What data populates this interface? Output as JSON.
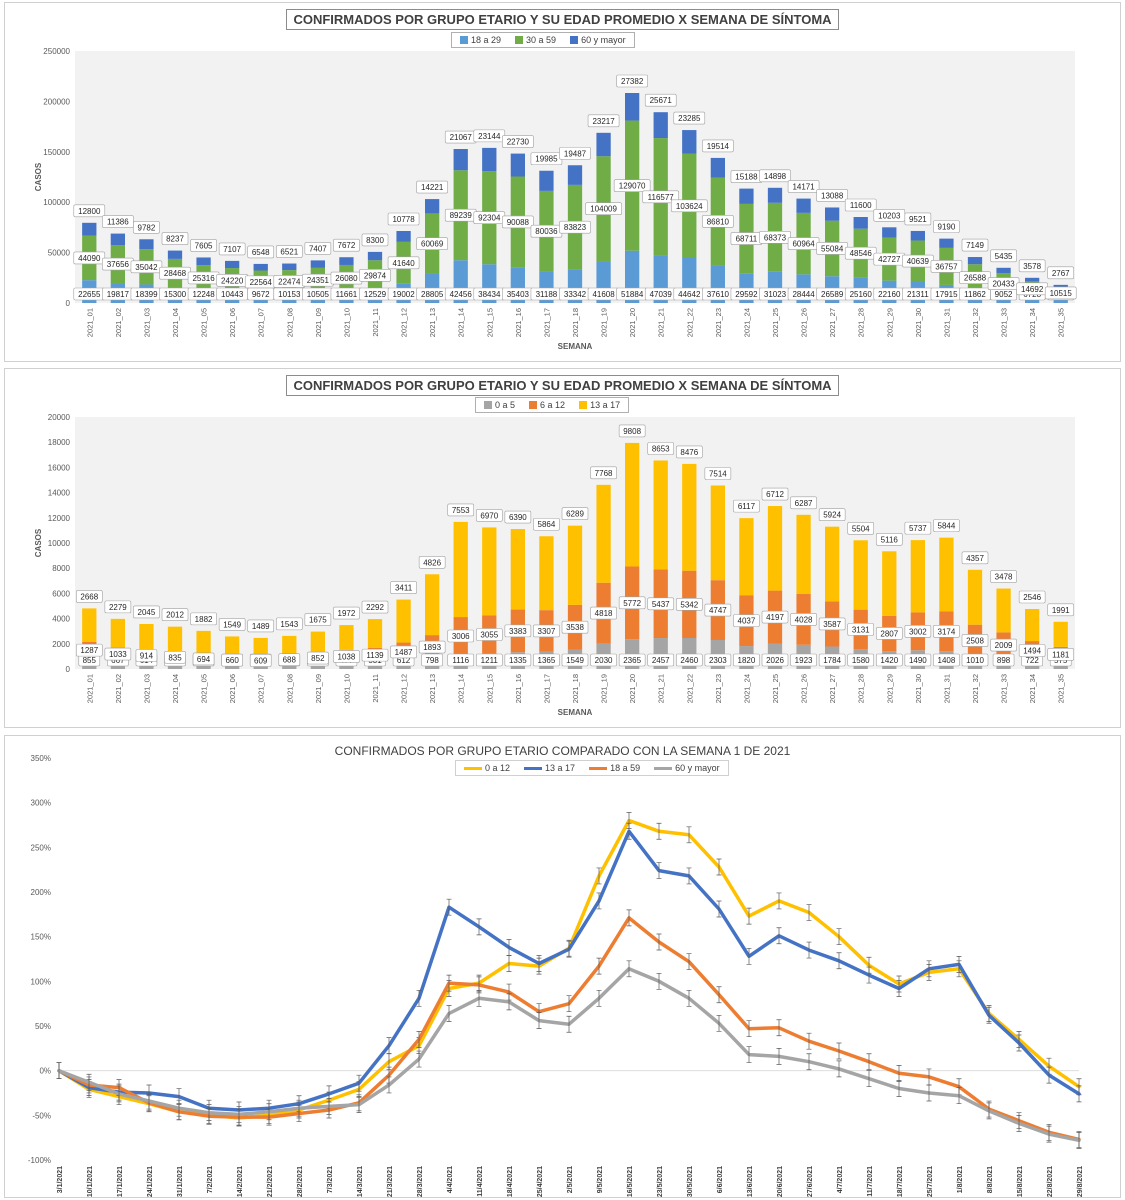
{
  "charts": [
    {
      "title": "CONFIRMADOS POR GRUPO ETARIO Y SU EDAD PROMEDIO X SEMANA DE SÍNTOMA",
      "ylabel": "CASOS",
      "xlabel": "SEMANA",
      "legend": [
        "18 a 29",
        "30 a 59",
        "60 y mayor"
      ]
    },
    {
      "title": "CONFIRMADOS POR GRUPO ETARIO Y SU EDAD PROMEDIO X SEMANA DE SÍNTOMA",
      "ylabel": "CASOS",
      "xlabel": "SEMANA",
      "legend": [
        "0 a 5",
        "6 a 12",
        "13 a 17"
      ]
    },
    {
      "title": "CONFIRMADOS POR GRUPO ETARIO COMPARADO CON LA SEMANA 1 DE 2021",
      "legend": [
        "0 a 12",
        "13 a 17",
        "18 a 59",
        "60 y mayor"
      ]
    }
  ],
  "chart_data": [
    {
      "type": "bar",
      "stacked": true,
      "title": "CONFIRMADOS POR GRUPO ETARIO Y SU EDAD PROMEDIO X SEMANA DE SÍNTOMA",
      "xlabel": "SEMANA",
      "ylabel": "CASOS",
      "ylim": [
        0,
        250000
      ],
      "yticks": [
        0,
        50000,
        100000,
        150000,
        200000,
        250000
      ],
      "grid": false,
      "legend_position": "top",
      "categories": [
        "2021_01",
        "2021_02",
        "2021_03",
        "2021_04",
        "2021_05",
        "2021_06",
        "2021_07",
        "2021_08",
        "2021_09",
        "2021_10",
        "2021_11",
        "2021_12",
        "2021_13",
        "2021_14",
        "2021_15",
        "2021_16",
        "2021_17",
        "2021_18",
        "2021_19",
        "2021_20",
        "2021_21",
        "2021_22",
        "2021_23",
        "2021_24",
        "2021_25",
        "2021_26",
        "2021_27",
        "2021_28",
        "2021_29",
        "2021_30",
        "2021_31",
        "2021_32",
        "2021_33",
        "2021_34",
        "2021_35"
      ],
      "series": [
        {
          "name": "18 a 29",
          "color": "#5b9bd5",
          "values": [
            22655,
            19817,
            18399,
            15300,
            12248,
            10443,
            9672,
            10153,
            10505,
            11661,
            12529,
            19002,
            28805,
            42456,
            38434,
            35403,
            31188,
            33342,
            41608,
            51884,
            47039,
            44642,
            37610,
            29592,
            31023,
            28444,
            26589,
            25160,
            22160,
            21311,
            17915,
            11862,
            9052,
            6728,
            4718
          ]
        },
        {
          "name": "30 a 59",
          "color": "#70ad47",
          "values": [
            44090,
            37656,
            35042,
            28468,
            25316,
            24220,
            22564,
            22474,
            24351,
            26080,
            29874,
            41640,
            60069,
            89239,
            92304,
            90088,
            80036,
            83823,
            104009,
            129070,
            116577,
            103624,
            86810,
            68711,
            68373,
            60964,
            55084,
            48546,
            42727,
            40639,
            36757,
            26588,
            20433,
            14692,
            10515
          ]
        },
        {
          "name": "60 y mayor",
          "color": "#4472c4",
          "values": [
            12800,
            11386,
            9782,
            8237,
            7605,
            7107,
            6548,
            6521,
            7407,
            7672,
            8300,
            10778,
            14221,
            21067,
            23144,
            22730,
            19985,
            19487,
            23217,
            27382,
            25671,
            23285,
            19514,
            15188,
            14898,
            14171,
            13088,
            11600,
            10203,
            9521,
            9190,
            7149,
            5435,
            3578,
            2767
          ]
        }
      ]
    },
    {
      "type": "bar",
      "stacked": true,
      "title": "CONFIRMADOS POR GRUPO ETARIO Y SU EDAD PROMEDIO X SEMANA DE SÍNTOMA",
      "xlabel": "SEMANA",
      "ylabel": "CASOS",
      "ylim": [
        0,
        20000
      ],
      "yticks": [
        0,
        2000,
        4000,
        6000,
        8000,
        10000,
        12000,
        14000,
        16000,
        18000,
        20000
      ],
      "grid": false,
      "legend_position": "top",
      "categories": [
        "2021_01",
        "2021_02",
        "2021_03",
        "2021_04",
        "2021_05",
        "2021_06",
        "2021_07",
        "2021_08",
        "2021_09",
        "2021_10",
        "2021_11",
        "2021_12",
        "2021_13",
        "2021_14",
        "2021_15",
        "2021_16",
        "2021_17",
        "2021_18",
        "2021_19",
        "2021_20",
        "2021_21",
        "2021_22",
        "2021_23",
        "2021_24",
        "2021_25",
        "2021_26",
        "2021_27",
        "2021_28",
        "2021_29",
        "2021_30",
        "2021_31",
        "2021_32",
        "2021_33",
        "2021_34",
        "2021_35"
      ],
      "series": [
        {
          "name": "0 a 5",
          "color": "#a5a5a5",
          "values": [
            855,
            667,
            614,
            513,
            450,
            375,
            370,
            397,
            443,
            477,
            531,
            612,
            798,
            1116,
            1211,
            1335,
            1365,
            1549,
            2030,
            2365,
            2457,
            2460,
            2303,
            1820,
            2026,
            1923,
            1784,
            1580,
            1420,
            1490,
            1408,
            1010,
            898,
            722,
            575
          ]
        },
        {
          "name": "6 a 12",
          "color": "#ed7d31",
          "values": [
            1287,
            1033,
            914,
            835,
            694,
            660,
            609,
            688,
            852,
            1038,
            1139,
            1487,
            1893,
            3006,
            3055,
            3383,
            3307,
            3538,
            4818,
            5772,
            5437,
            5342,
            4747,
            4037,
            4197,
            4028,
            3587,
            3131,
            2807,
            3002,
            3174,
            2508,
            2009,
            1494,
            1181
          ]
        },
        {
          "name": "13 a 17",
          "color": "#ffc000",
          "values": [
            2668,
            2279,
            2045,
            2012,
            1882,
            1549,
            1489,
            1543,
            1675,
            1972,
            2292,
            3411,
            4826,
            7553,
            6970,
            6390,
            5864,
            6289,
            7768,
            9808,
            8653,
            8476,
            7514,
            6117,
            6712,
            6287,
            5924,
            5504,
            5116,
            5737,
            5844,
            4357,
            3478,
            2546,
            1991
          ]
        }
      ]
    },
    {
      "type": "line",
      "title": "CONFIRMADOS POR GRUPO ETARIO COMPARADO CON LA SEMANA 1 DE 2021",
      "ylim": [
        -1.0,
        3.5
      ],
      "yticks": [
        "-100%",
        "-50%",
        "0%",
        "50%",
        "100%",
        "150%",
        "200%",
        "250%",
        "300%",
        "350%"
      ],
      "grid": false,
      "legend_position": "top",
      "categories": [
        "3/1/2021",
        "10/1/2021",
        "17/1/2021",
        "24/1/2021",
        "31/1/2021",
        "7/2/2021",
        "14/2/2021",
        "21/2/2021",
        "28/2/2021",
        "7/3/2021",
        "14/3/2021",
        "21/3/2021",
        "28/3/2021",
        "4/4/2021",
        "11/4/2021",
        "18/4/2021",
        "25/4/2021",
        "2/5/2021",
        "9/5/2021",
        "16/5/2021",
        "23/5/2021",
        "30/5/2021",
        "6/6/2021",
        "13/6/2021",
        "20/6/2021",
        "27/6/2021",
        "4/7/2021",
        "11/7/2021",
        "18/7/2021",
        "25/7/2021",
        "1/8/2021",
        "8/8/2021",
        "15/8/2021",
        "22/8/2021",
        "29/8/2021"
      ],
      "series": [
        {
          "name": "0 a 12",
          "color": "#ffc000",
          "values": [
            0,
            -0.21,
            -0.29,
            -0.37,
            -0.46,
            -0.5,
            -0.53,
            -0.5,
            -0.44,
            -0.33,
            -0.21,
            0.1,
            0.28,
            0.92,
            0.98,
            1.2,
            1.17,
            1.37,
            2.18,
            2.8,
            2.68,
            2.64,
            2.28,
            1.73,
            1.9,
            1.77,
            1.5,
            1.18,
            0.97,
            1.1,
            1.14,
            0.64,
            0.35,
            0.05,
            -0.18
          ]
        },
        {
          "name": "13 a 17",
          "color": "#4472c4",
          "values": [
            0,
            -0.19,
            -0.24,
            -0.25,
            -0.29,
            -0.42,
            -0.44,
            -0.42,
            -0.37,
            -0.26,
            -0.14,
            0.28,
            0.81,
            1.83,
            1.61,
            1.38,
            1.2,
            1.36,
            1.9,
            2.68,
            2.24,
            2.18,
            1.81,
            1.28,
            1.51,
            1.35,
            1.23,
            1.07,
            0.92,
            1.14,
            1.19,
            0.62,
            0.31,
            -0.05,
            -0.26
          ]
        },
        {
          "name": "18 a 59",
          "color": "#ed7d31",
          "values": [
            0,
            -0.16,
            -0.19,
            -0.36,
            -0.46,
            -0.51,
            -0.52,
            -0.52,
            -0.48,
            -0.44,
            -0.36,
            -0.05,
            0.35,
            0.98,
            0.96,
            0.88,
            0.66,
            0.75,
            1.17,
            1.71,
            1.44,
            1.22,
            0.85,
            0.47,
            0.48,
            0.33,
            0.22,
            0.1,
            -0.03,
            -0.07,
            -0.18,
            -0.43,
            -0.56,
            -0.69,
            -0.77
          ]
        },
        {
          "name": "60 y mayor",
          "color": "#a5a5a5",
          "values": [
            0,
            -0.13,
            -0.26,
            -0.34,
            -0.42,
            -0.47,
            -0.49,
            -0.46,
            -0.42,
            -0.4,
            -0.38,
            -0.16,
            0.13,
            0.64,
            0.81,
            0.77,
            0.56,
            0.52,
            0.81,
            1.14,
            1.0,
            0.81,
            0.53,
            0.18,
            0.16,
            0.1,
            0.02,
            -0.09,
            -0.2,
            -0.25,
            -0.28,
            -0.45,
            -0.59,
            -0.71,
            -0.78
          ]
        }
      ]
    }
  ]
}
